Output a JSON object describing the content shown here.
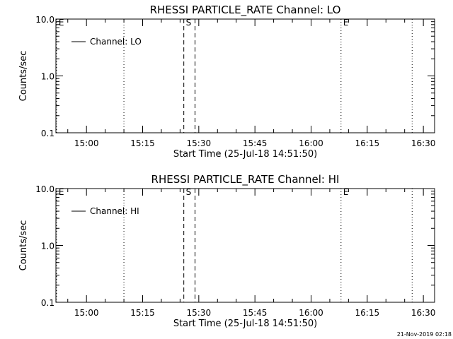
{
  "footer_timestamp": "21-Nov-2019 02:18",
  "chart_data": [
    {
      "type": "line",
      "title": "RHESSI PARTICLE_RATE Channel: LO",
      "xlabel": "Start Time (25-Jul-18 14:51:50)",
      "ylabel": "Counts/sec",
      "y_scale": "log",
      "ylim": [
        0.1,
        10.0
      ],
      "y_ticks": [
        {
          "value": 0.1,
          "label": "0.1"
        },
        {
          "value": 1.0,
          "label": "1.0"
        },
        {
          "value": 10.0,
          "label": "10.0"
        }
      ],
      "xlim": [
        "14:51:50",
        "16:33:00"
      ],
      "x_ticks": [
        "15:00",
        "15:15",
        "15:30",
        "15:45",
        "16:00",
        "16:15",
        "16:30"
      ],
      "legend": {
        "position": "top-left",
        "entries": [
          "Channel: LO"
        ]
      },
      "series": [
        {
          "name": "Channel: LO",
          "x": [],
          "y": []
        }
      ],
      "markers": [
        {
          "time": "14:52:00",
          "style": "dotted",
          "label": "E"
        },
        {
          "time": "15:10:00",
          "style": "dotted",
          "label": ""
        },
        {
          "time": "15:26:00",
          "style": "dashed",
          "label": "S"
        },
        {
          "time": "15:29:00",
          "style": "dashed",
          "label": ""
        },
        {
          "time": "16:08:00",
          "style": "dotted",
          "label": "E"
        },
        {
          "time": "16:27:00",
          "style": "dotted",
          "label": ""
        }
      ]
    },
    {
      "type": "line",
      "title": "RHESSI PARTICLE_RATE Channel: HI",
      "xlabel": "Start Time (25-Jul-18 14:51:50)",
      "ylabel": "Counts/sec",
      "y_scale": "log",
      "ylim": [
        0.1,
        10.0
      ],
      "y_ticks": [
        {
          "value": 0.1,
          "label": "0.1"
        },
        {
          "value": 1.0,
          "label": "1.0"
        },
        {
          "value": 10.0,
          "label": "10.0"
        }
      ],
      "xlim": [
        "14:51:50",
        "16:33:00"
      ],
      "x_ticks": [
        "15:00",
        "15:15",
        "15:30",
        "15:45",
        "16:00",
        "16:15",
        "16:30"
      ],
      "legend": {
        "position": "top-left",
        "entries": [
          "Channel: HI"
        ]
      },
      "series": [
        {
          "name": "Channel: HI",
          "x": [],
          "y": []
        }
      ],
      "markers": [
        {
          "time": "14:52:00",
          "style": "dotted",
          "label": "E"
        },
        {
          "time": "15:10:00",
          "style": "dotted",
          "label": ""
        },
        {
          "time": "15:26:00",
          "style": "dashed",
          "label": "S"
        },
        {
          "time": "15:29:00",
          "style": "dashed",
          "label": ""
        },
        {
          "time": "16:08:00",
          "style": "dotted",
          "label": "E"
        },
        {
          "time": "16:27:00",
          "style": "dotted",
          "label": ""
        }
      ]
    }
  ]
}
